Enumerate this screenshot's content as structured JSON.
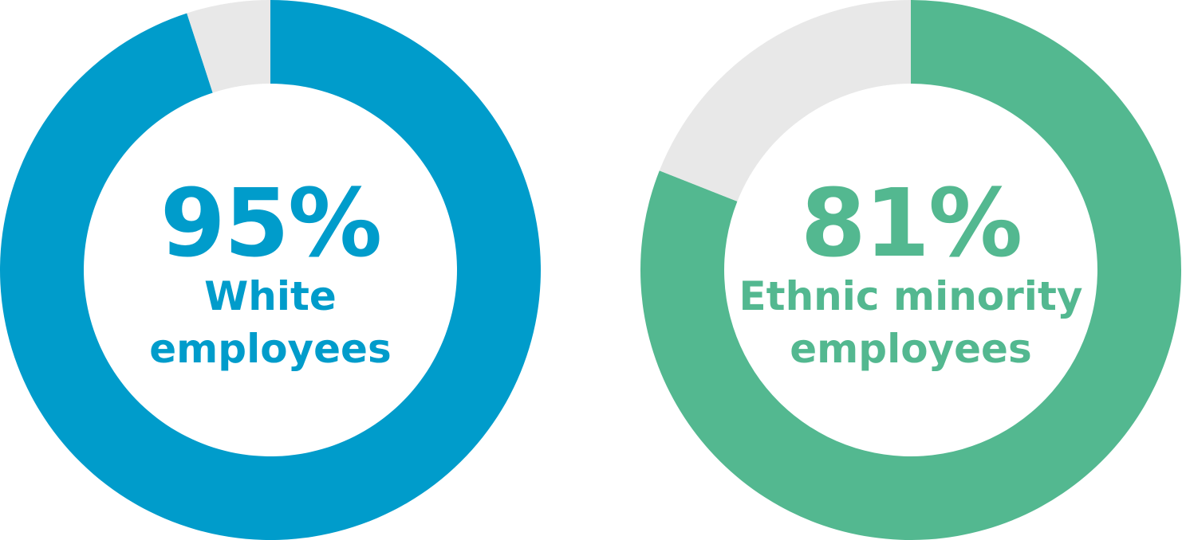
{
  "chart_data": [
    {
      "type": "pie",
      "value_label": "95%",
      "label_lines": [
        "White",
        "employees"
      ],
      "values": [
        95,
        5
      ],
      "colors": [
        "#009ccb",
        "#e8e8e8"
      ]
    },
    {
      "type": "pie",
      "value_label": "81%",
      "label_lines": [
        "Ethnic minority",
        "employees"
      ],
      "values": [
        81,
        19
      ],
      "colors": [
        "#53b890",
        "#e8e8e8"
      ]
    }
  ]
}
